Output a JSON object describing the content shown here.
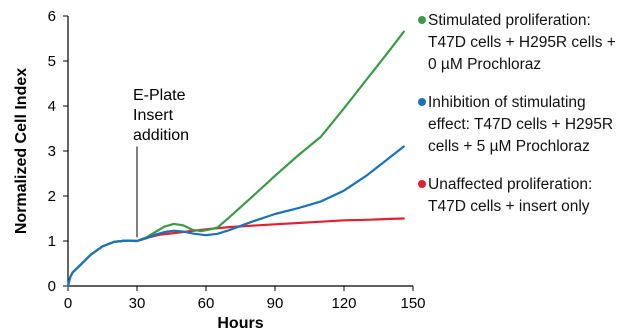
{
  "chart_data": {
    "type": "line",
    "xlabel": "Hours",
    "ylabel": "Normalized Cell Index",
    "xlim": [
      0,
      150
    ],
    "ylim": [
      0,
      6
    ],
    "xticks": [
      0,
      30,
      60,
      90,
      120,
      150
    ],
    "yticks": [
      0,
      1,
      2,
      3,
      4,
      5,
      6
    ],
    "grid": false,
    "legend_position": "right",
    "annotation": {
      "lines": [
        "E-Plate",
        "Insert",
        "addition"
      ],
      "x": 30,
      "y_top": 3.1,
      "y_bottom": 1.08
    },
    "series": [
      {
        "name": "Stimulated proliferation: T47D cells + H295R cells + 0 µM Prochloraz",
        "color": "#3a9a45",
        "points": [
          [
            0,
            0
          ],
          [
            1,
            0.2
          ],
          [
            2,
            0.3
          ],
          [
            5,
            0.45
          ],
          [
            10,
            0.7
          ],
          [
            15,
            0.88
          ],
          [
            20,
            0.98
          ],
          [
            25,
            1.01
          ],
          [
            30,
            1.0
          ],
          [
            34,
            1.08
          ],
          [
            38,
            1.2
          ],
          [
            42,
            1.32
          ],
          [
            46,
            1.38
          ],
          [
            50,
            1.35
          ],
          [
            54,
            1.25
          ],
          [
            58,
            1.22
          ],
          [
            62,
            1.26
          ],
          [
            65,
            1.3
          ],
          [
            70,
            1.52
          ],
          [
            80,
            1.98
          ],
          [
            90,
            2.45
          ],
          [
            100,
            2.9
          ],
          [
            110,
            3.32
          ],
          [
            120,
            3.95
          ],
          [
            130,
            4.6
          ],
          [
            140,
            5.25
          ],
          [
            146,
            5.65
          ]
        ]
      },
      {
        "name": "Inhibition of stimulating effect: T47D cells + H295R cells + 5 µM Prochloraz",
        "color": "#1a73b8",
        "points": [
          [
            0,
            0
          ],
          [
            1,
            0.2
          ],
          [
            2,
            0.3
          ],
          [
            5,
            0.45
          ],
          [
            10,
            0.7
          ],
          [
            15,
            0.88
          ],
          [
            20,
            0.98
          ],
          [
            25,
            1.01
          ],
          [
            30,
            1.0
          ],
          [
            34,
            1.06
          ],
          [
            38,
            1.14
          ],
          [
            42,
            1.2
          ],
          [
            46,
            1.23
          ],
          [
            50,
            1.21
          ],
          [
            55,
            1.16
          ],
          [
            60,
            1.13
          ],
          [
            65,
            1.16
          ],
          [
            70,
            1.24
          ],
          [
            80,
            1.43
          ],
          [
            90,
            1.6
          ],
          [
            100,
            1.73
          ],
          [
            110,
            1.88
          ],
          [
            120,
            2.12
          ],
          [
            130,
            2.46
          ],
          [
            140,
            2.86
          ],
          [
            146,
            3.1
          ]
        ]
      },
      {
        "name": "Unaffected proliferation: T47D cells + insert only",
        "color": "#e32030",
        "points": [
          [
            0,
            0
          ],
          [
            1,
            0.2
          ],
          [
            2,
            0.3
          ],
          [
            5,
            0.45
          ],
          [
            10,
            0.7
          ],
          [
            15,
            0.88
          ],
          [
            20,
            0.98
          ],
          [
            25,
            1.01
          ],
          [
            30,
            1.0
          ],
          [
            35,
            1.08
          ],
          [
            40,
            1.14
          ],
          [
            45,
            1.17
          ],
          [
            50,
            1.2
          ],
          [
            55,
            1.23
          ],
          [
            60,
            1.26
          ],
          [
            70,
            1.31
          ],
          [
            80,
            1.34
          ],
          [
            90,
            1.37
          ],
          [
            100,
            1.4
          ],
          [
            110,
            1.43
          ],
          [
            120,
            1.46
          ],
          [
            130,
            1.47
          ],
          [
            140,
            1.49
          ],
          [
            146,
            1.5
          ]
        ]
      }
    ]
  }
}
